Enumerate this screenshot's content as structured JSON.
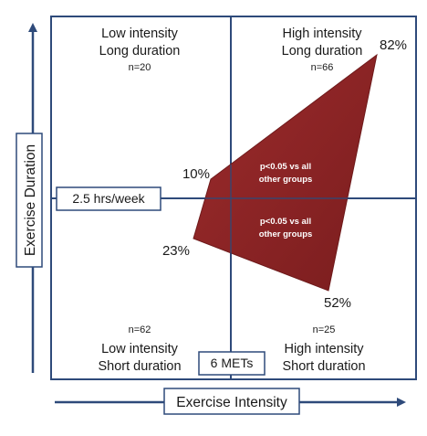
{
  "quadrants": {
    "top_left": {
      "line1": "Low intensity",
      "line2": "Long duration",
      "n": "n=20"
    },
    "top_right": {
      "line1": "High intensity",
      "line2": "Long duration",
      "n": "n=66"
    },
    "bottom_left": {
      "line1": "Low intensity",
      "line2": "Short duration",
      "n": "n=62"
    },
    "bottom_right": {
      "line1": "High intensity",
      "line2": "Short duration",
      "n": "n=25"
    }
  },
  "thresholds": {
    "duration": "2.5 hrs/week",
    "intensity": "6 METs"
  },
  "axes": {
    "y_title": "Exercise Duration",
    "x_title": "Exercise Intensity"
  },
  "polygon": {
    "color": "#8b2223",
    "vertices": {
      "top_right": "82%",
      "left_upper": "10%",
      "left_lower": "23%",
      "bottom": "52%"
    },
    "annotations": {
      "upper": {
        "line1": "p<0.05 vs all",
        "line2": "other groups"
      },
      "lower": {
        "line1": "p<0.05 vs all",
        "line2": "other groups"
      }
    }
  },
  "colors": {
    "frame": "#2e4a7a",
    "polygon_fill": "#8b2223"
  }
}
